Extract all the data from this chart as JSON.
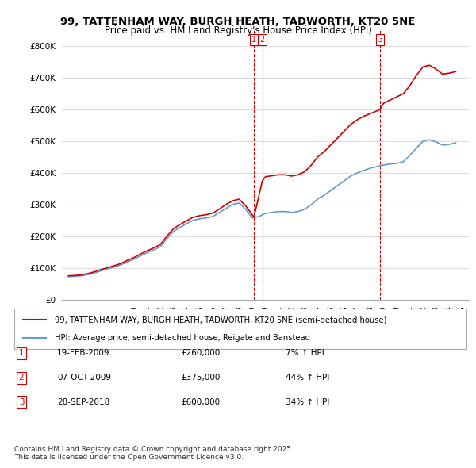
{
  "title_line1": "99, TATTENHAM WAY, BURGH HEATH, TADWORTH, KT20 5NE",
  "title_line2": "Price paid vs. HM Land Registry's House Price Index (HPI)",
  "ylabel": "",
  "background_color": "#ffffff",
  "plot_bg_color": "#ffffff",
  "grid_color": "#dddddd",
  "hpi_line_color": "#6699cc",
  "price_line_color": "#cc0000",
  "ylim": [
    0,
    850000
  ],
  "yticks": [
    0,
    100000,
    200000,
    300000,
    400000,
    500000,
    600000,
    700000,
    800000
  ],
  "ytick_labels": [
    "£0",
    "£100K",
    "£200K",
    "£300K",
    "£400K",
    "£500K",
    "£600K",
    "£700K",
    "£800K"
  ],
  "legend_line1": "99, TATTENHAM WAY, BURGH HEATH, TADWORTH, KT20 5NE (semi-detached house)",
  "legend_line2": "HPI: Average price, semi-detached house, Reigate and Banstead",
  "transactions": [
    {
      "num": "1",
      "date": "19-FEB-2009",
      "price": "£260,000",
      "hpi": "7% ↑ HPI",
      "x": 2009.13
    },
    {
      "num": "2",
      "date": "07-OCT-2009",
      "price": "£375,000",
      "hpi": "44% ↑ HPI",
      "x": 2009.77
    },
    {
      "num": "3",
      "date": "28-SEP-2018",
      "price": "£600,000",
      "hpi": "34% ↑ HPI",
      "x": 2018.74
    }
  ],
  "transaction_values": [
    260000,
    375000,
    600000
  ],
  "footer": "Contains HM Land Registry data © Crown copyright and database right 2025.\nThis data is licensed under the Open Government Licence v3.0.",
  "hpi_data_x": [
    1995.0,
    1995.5,
    1996.0,
    1996.5,
    1997.0,
    1997.5,
    1998.0,
    1998.5,
    1999.0,
    1999.5,
    2000.0,
    2000.5,
    2001.0,
    2001.5,
    2002.0,
    2002.5,
    2003.0,
    2003.5,
    2004.0,
    2004.5,
    2005.0,
    2005.5,
    2006.0,
    2006.5,
    2007.0,
    2007.5,
    2008.0,
    2008.5,
    2009.0,
    2009.5,
    2010.0,
    2010.5,
    2011.0,
    2011.5,
    2012.0,
    2012.5,
    2013.0,
    2013.5,
    2014.0,
    2014.5,
    2015.0,
    2015.5,
    2016.0,
    2016.5,
    2017.0,
    2017.5,
    2018.0,
    2018.5,
    2019.0,
    2019.5,
    2020.0,
    2020.5,
    2021.0,
    2021.5,
    2022.0,
    2022.5,
    2023.0,
    2023.5,
    2024.0,
    2024.5
  ],
  "hpi_data_y": [
    72000,
    73000,
    75000,
    79000,
    84000,
    91000,
    97000,
    103000,
    110000,
    119000,
    128000,
    138000,
    148000,
    157000,
    167000,
    192000,
    215000,
    228000,
    240000,
    250000,
    255000,
    258000,
    262000,
    275000,
    288000,
    300000,
    305000,
    285000,
    258000,
    262000,
    272000,
    275000,
    278000,
    278000,
    275000,
    278000,
    285000,
    300000,
    318000,
    330000,
    345000,
    360000,
    375000,
    390000,
    400000,
    408000,
    415000,
    420000,
    425000,
    428000,
    430000,
    435000,
    455000,
    478000,
    500000,
    505000,
    498000,
    488000,
    490000,
    495000
  ],
  "price_data_x": [
    1995.0,
    1995.5,
    1996.0,
    1996.5,
    1997.0,
    1997.5,
    1998.0,
    1998.5,
    1999.0,
    1999.5,
    2000.0,
    2000.5,
    2001.0,
    2001.5,
    2002.0,
    2002.5,
    2003.0,
    2003.5,
    2004.0,
    2004.5,
    2005.0,
    2005.5,
    2006.0,
    2006.5,
    2007.0,
    2007.5,
    2008.0,
    2008.5,
    2009.13,
    2009.77,
    2010.0,
    2010.5,
    2011.0,
    2011.5,
    2012.0,
    2012.5,
    2013.0,
    2013.5,
    2014.0,
    2014.5,
    2015.0,
    2015.5,
    2016.0,
    2016.5,
    2017.0,
    2017.5,
    2018.74,
    2019.0,
    2019.5,
    2020.0,
    2020.5,
    2021.0,
    2021.5,
    2022.0,
    2022.5,
    2023.0,
    2023.5,
    2024.0,
    2024.5
  ],
  "price_data_y": [
    75000,
    76000,
    78000,
    82000,
    88000,
    95000,
    101000,
    107000,
    114000,
    124000,
    133000,
    144000,
    154000,
    163000,
    174000,
    200000,
    224000,
    237000,
    249000,
    260000,
    265000,
    268000,
    273000,
    286000,
    300000,
    312000,
    317000,
    296000,
    260000,
    375000,
    388000,
    391000,
    394000,
    394000,
    390000,
    394000,
    404000,
    425000,
    451000,
    468000,
    489000,
    510000,
    532000,
    553000,
    568000,
    579000,
    600000,
    620000,
    630000,
    640000,
    650000,
    675000,
    708000,
    735000,
    740000,
    728000,
    712000,
    715000,
    720000
  ]
}
